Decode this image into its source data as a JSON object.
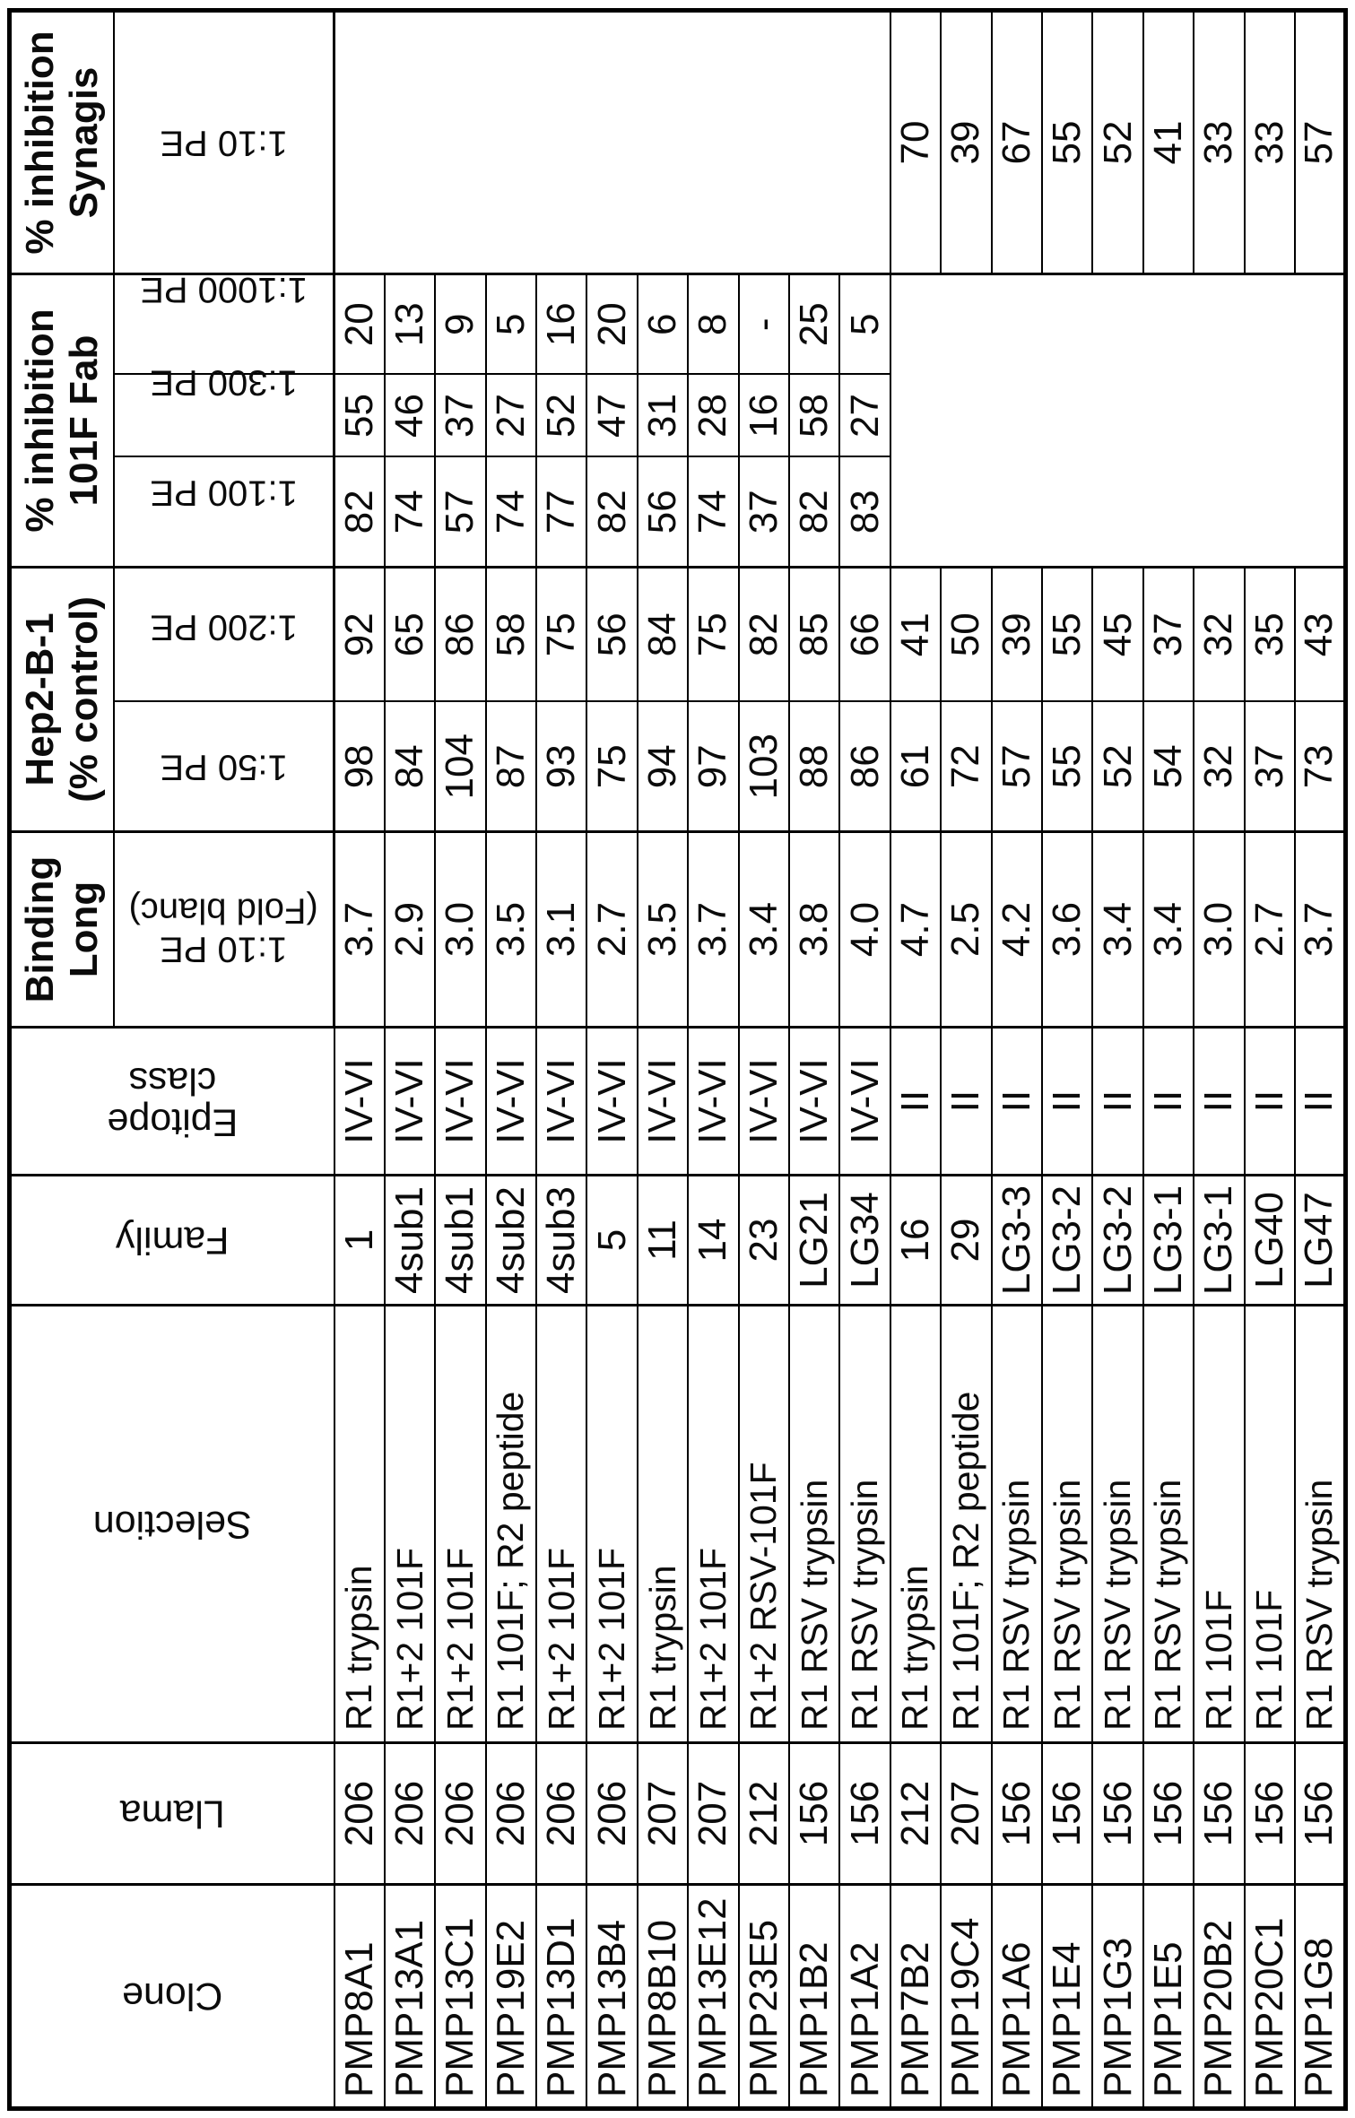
{
  "table": {
    "column_headers": {
      "clone": "Clone",
      "llama": "Llama",
      "selection": "Selection",
      "family": "Family",
      "epitope_class": "Epitope\nclass",
      "binding_long": {
        "group": "Binding\nLong",
        "sub": "1:10 PE\n(Fold blanc)"
      },
      "hep2": {
        "group": "Hep2-B-1\n(% control)",
        "subs": [
          "1:50 PE",
          "1:200 PE"
        ]
      },
      "inhibition_101f": {
        "group": "% inhibition\n101F Fab",
        "subs": [
          "1:100 PE",
          "1:300 PE",
          "1:1000 PE"
        ]
      },
      "inhibition_synagis": {
        "group": "% inhibition\nSynagis",
        "sub": "1:10 PE"
      }
    },
    "rows": [
      {
        "clone": "PMP8A1",
        "llama": "206",
        "selection": "R1 trypsin",
        "family": "1",
        "epitope_class": "IV-VI",
        "binding_1_10": "3.7",
        "hep2_1_50": "98",
        "hep2_1_200": "92",
        "fab_1_100": "82",
        "fab_1_300": "55",
        "fab_1_1000": "20",
        "synagis_1_10": ""
      },
      {
        "clone": "PMP13A1",
        "llama": "206",
        "selection": "R1+2 101F",
        "family": "4sub1",
        "epitope_class": "IV-VI",
        "binding_1_10": "2.9",
        "hep2_1_50": "84",
        "hep2_1_200": "65",
        "fab_1_100": "74",
        "fab_1_300": "46",
        "fab_1_1000": "13",
        "synagis_1_10": ""
      },
      {
        "clone": "PMP13C1",
        "llama": "206",
        "selection": "R1+2 101F",
        "family": "4sub1",
        "epitope_class": "IV-VI",
        "binding_1_10": "3.0",
        "hep2_1_50": "104",
        "hep2_1_200": "86",
        "fab_1_100": "57",
        "fab_1_300": "37",
        "fab_1_1000": "9",
        "synagis_1_10": ""
      },
      {
        "clone": "PMP19E2",
        "llama": "206",
        "selection": "R1 101F; R2 peptide",
        "family": "4sub2",
        "epitope_class": "IV-VI",
        "binding_1_10": "3.5",
        "hep2_1_50": "87",
        "hep2_1_200": "58",
        "fab_1_100": "74",
        "fab_1_300": "27",
        "fab_1_1000": "5",
        "synagis_1_10": ""
      },
      {
        "clone": "PMP13D1",
        "llama": "206",
        "selection": "R1+2 101F",
        "family": "4sub3",
        "epitope_class": "IV-VI",
        "binding_1_10": "3.1",
        "hep2_1_50": "93",
        "hep2_1_200": "75",
        "fab_1_100": "77",
        "fab_1_300": "52",
        "fab_1_1000": "16",
        "synagis_1_10": ""
      },
      {
        "clone": "PMP13B4",
        "llama": "206",
        "selection": "R1+2 101F",
        "family": "5",
        "epitope_class": "IV-VI",
        "binding_1_10": "2.7",
        "hep2_1_50": "75",
        "hep2_1_200": "56",
        "fab_1_100": "82",
        "fab_1_300": "47",
        "fab_1_1000": "20",
        "synagis_1_10": ""
      },
      {
        "clone": "PMP8B10",
        "llama": "207",
        "selection": "R1 trypsin",
        "family": "11",
        "epitope_class": "IV-VI",
        "binding_1_10": "3.5",
        "hep2_1_50": "94",
        "hep2_1_200": "84",
        "fab_1_100": "56",
        "fab_1_300": "31",
        "fab_1_1000": "6",
        "synagis_1_10": ""
      },
      {
        "clone": "PMP13E12",
        "llama": "207",
        "selection": "R1+2 101F",
        "family": "14",
        "epitope_class": "IV-VI",
        "binding_1_10": "3.7",
        "hep2_1_50": "97",
        "hep2_1_200": "75",
        "fab_1_100": "74",
        "fab_1_300": "28",
        "fab_1_1000": "8",
        "synagis_1_10": ""
      },
      {
        "clone": "PMP23E5",
        "llama": "212",
        "selection": "R1+2 RSV-101F",
        "family": "23",
        "epitope_class": "IV-VI",
        "binding_1_10": "3.4",
        "hep2_1_50": "103",
        "hep2_1_200": "82",
        "fab_1_100": "37",
        "fab_1_300": "16",
        "fab_1_1000": "-",
        "synagis_1_10": ""
      },
      {
        "clone": "PMP1B2",
        "llama": "156",
        "selection": "R1 RSV trypsin",
        "family": "LG21",
        "epitope_class": "IV-VI",
        "binding_1_10": "3.8",
        "hep2_1_50": "88",
        "hep2_1_200": "85",
        "fab_1_100": "82",
        "fab_1_300": "58",
        "fab_1_1000": "25",
        "synagis_1_10": ""
      },
      {
        "clone": "PMP1A2",
        "llama": "156",
        "selection": "R1 RSV trypsin",
        "family": "LG34",
        "epitope_class": "IV-VI",
        "binding_1_10": "4.0",
        "hep2_1_50": "86",
        "hep2_1_200": "66",
        "fab_1_100": "83",
        "fab_1_300": "27",
        "fab_1_1000": "5",
        "synagis_1_10": ""
      },
      {
        "clone": "PMP7B2",
        "llama": "212",
        "selection": "R1 trypsin",
        "family": "16",
        "epitope_class": "II",
        "binding_1_10": "4.7",
        "hep2_1_50": "61",
        "hep2_1_200": "41",
        "fab_1_100": "",
        "fab_1_300": "",
        "fab_1_1000": "",
        "synagis_1_10": "70"
      },
      {
        "clone": "PMP19C4",
        "llama": "207",
        "selection": "R1 101F; R2 peptide",
        "family": "29",
        "epitope_class": "II",
        "binding_1_10": "2.5",
        "hep2_1_50": "72",
        "hep2_1_200": "50",
        "fab_1_100": "",
        "fab_1_300": "",
        "fab_1_1000": "",
        "synagis_1_10": "39"
      },
      {
        "clone": "PMP1A6",
        "llama": "156",
        "selection": "R1 RSV trypsin",
        "family": "LG3-3",
        "epitope_class": "II",
        "binding_1_10": "4.2",
        "hep2_1_50": "57",
        "hep2_1_200": "39",
        "fab_1_100": "",
        "fab_1_300": "",
        "fab_1_1000": "",
        "synagis_1_10": "67"
      },
      {
        "clone": "PMP1E4",
        "llama": "156",
        "selection": "R1 RSV trypsin",
        "family": "LG3-2",
        "epitope_class": "II",
        "binding_1_10": "3.6",
        "hep2_1_50": "55",
        "hep2_1_200": "55",
        "fab_1_100": "",
        "fab_1_300": "",
        "fab_1_1000": "",
        "synagis_1_10": "55"
      },
      {
        "clone": "PMP1G3",
        "llama": "156",
        "selection": "R1 RSV trypsin",
        "family": "LG3-2",
        "epitope_class": "II",
        "binding_1_10": "3.4",
        "hep2_1_50": "52",
        "hep2_1_200": "45",
        "fab_1_100": "",
        "fab_1_300": "",
        "fab_1_1000": "",
        "synagis_1_10": "52"
      },
      {
        "clone": "PMP1E5",
        "llama": "156",
        "selection": "R1 RSV trypsin",
        "family": "LG3-1",
        "epitope_class": "II",
        "binding_1_10": "3.4",
        "hep2_1_50": "54",
        "hep2_1_200": "37",
        "fab_1_100": "",
        "fab_1_300": "",
        "fab_1_1000": "",
        "synagis_1_10": "41"
      },
      {
        "clone": "PMP20B2",
        "llama": "156",
        "selection": "R1 101F",
        "family": "LG3-1",
        "epitope_class": "II",
        "binding_1_10": "3.0",
        "hep2_1_50": "32",
        "hep2_1_200": "32",
        "fab_1_100": "",
        "fab_1_300": "",
        "fab_1_1000": "",
        "synagis_1_10": "33"
      },
      {
        "clone": "PMP20C1",
        "llama": "156",
        "selection": "R1 101F",
        "family": "LG40",
        "epitope_class": "II",
        "binding_1_10": "2.7",
        "hep2_1_50": "37",
        "hep2_1_200": "35",
        "fab_1_100": "",
        "fab_1_300": "",
        "fab_1_1000": "",
        "synagis_1_10": "33"
      },
      {
        "clone": "PMP1G8",
        "llama": "156",
        "selection": "R1 RSV trypsin",
        "family": "LG47",
        "epitope_class": "II",
        "binding_1_10": "3.7",
        "hep2_1_50": "73",
        "hep2_1_200": "43",
        "fab_1_100": "",
        "fab_1_300": "",
        "fab_1_1000": "",
        "synagis_1_10": "57"
      }
    ]
  }
}
